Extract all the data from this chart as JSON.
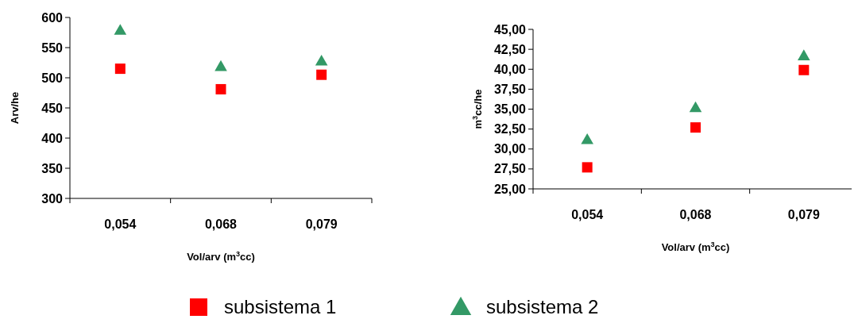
{
  "chart_data": [
    {
      "type": "scatter",
      "xlabel": "Vol/arv (m$^{3}$cc)",
      "ylabel": "Arv/he",
      "categories": [
        "0,054",
        "0,068",
        "0,079"
      ],
      "ylim": [
        300,
        600
      ],
      "yticks": [
        300,
        350,
        400,
        450,
        500,
        550,
        600
      ],
      "grid": false,
      "series": [
        {
          "color": "#ff0000",
          "marker": "square",
          "values": [
            515,
            481,
            505
          ]
        },
        {
          "color": "#339966",
          "marker": "triangle",
          "values": [
            579,
            519,
            528
          ]
        }
      ]
    },
    {
      "type": "scatter",
      "xlabel": "Vol/arv (m$^{3}$cc)",
      "ylabel": "m$^{3}$cc/he",
      "categories": [
        "0,054",
        "0,068",
        "0,079"
      ],
      "ylim": [
        25,
        45
      ],
      "yticks": [
        {
          "value": 25,
          "label": "25,00"
        },
        {
          "value": 27.5,
          "label": "27,50"
        },
        {
          "value": 30,
          "label": "30,00"
        },
        {
          "value": 32.5,
          "label": "32,50"
        },
        {
          "value": 35,
          "label": "35,00"
        },
        {
          "value": 37.5,
          "label": "37,50"
        },
        {
          "value": 40,
          "label": "40,00"
        },
        {
          "value": 42.5,
          "label": "42,50"
        },
        {
          "value": 45,
          "label": "45,00"
        }
      ],
      "grid": false,
      "legend": "bottom",
      "series": [
        {
          "name": "subsistema 1",
          "color": "#ff0000",
          "marker": "square",
          "values": [
            27.7,
            32.7,
            39.9
          ]
        },
        {
          "name": "subsistema 2",
          "color": "#339966",
          "marker": "triangle",
          "values": [
            31.2,
            35.2,
            41.7
          ]
        }
      ]
    }
  ]
}
